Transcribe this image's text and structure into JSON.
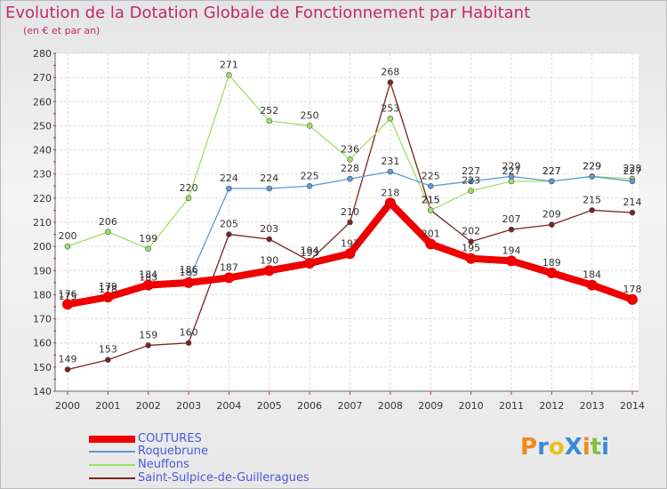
{
  "header": {
    "title": "Evolution de la Dotation Globale de Fonctionnement par Habitant",
    "subtitle": "(en € et par an)"
  },
  "logo": {
    "text": "ProXiti",
    "colors": [
      "#f08a1c",
      "#3a8ad8",
      "#e8c020",
      "#3a8ad8",
      "#f08a1c",
      "#80c040",
      "#3a8ad8"
    ]
  },
  "chart_data": {
    "type": "line",
    "title": "Evolution de la Dotation Globale de Fonctionnement par Habitant",
    "subtitle": "(en € et par an)",
    "xlabel": "",
    "ylabel": "",
    "ylim": [
      140,
      280
    ],
    "yticks": [
      "140",
      "150",
      "160",
      "170",
      "180",
      "190",
      "200",
      "210",
      "220",
      "230",
      "240",
      "250",
      "260",
      "270",
      "280"
    ],
    "grid": true,
    "categories": [
      "2000",
      "2001",
      "2002",
      "2003",
      "2004",
      "2005",
      "2006",
      "2007",
      "2008",
      "2009",
      "2010",
      "2011",
      "2012",
      "2013",
      "2014"
    ],
    "series": [
      {
        "name": "COUTURES",
        "color": "#ee0000",
        "values": [
          176,
          179,
          184,
          185,
          187,
          190,
          193,
          197,
          218,
          201,
          195,
          194,
          189,
          184,
          178
        ]
      },
      {
        "name": "Roquebrune",
        "color": "#5b9bd5",
        "values": [
          175,
          178,
          183,
          186,
          224,
          224,
          225,
          228,
          231,
          225,
          227,
          229,
          227,
          229,
          227
        ]
      },
      {
        "name": "Neuffons",
        "color": "#9ee066",
        "values": [
          200,
          206,
          199,
          220,
          271,
          252,
          250,
          236,
          253,
          215,
          223,
          227,
          227,
          229,
          228
        ]
      },
      {
        "name": "Saint-Sulpice-de-Guilleragues",
        "color": "#7a2222",
        "values": [
          149,
          153,
          159,
          160,
          205,
          203,
          194,
          210,
          268,
          215,
          202,
          207,
          209,
          215,
          214
        ]
      }
    ]
  }
}
